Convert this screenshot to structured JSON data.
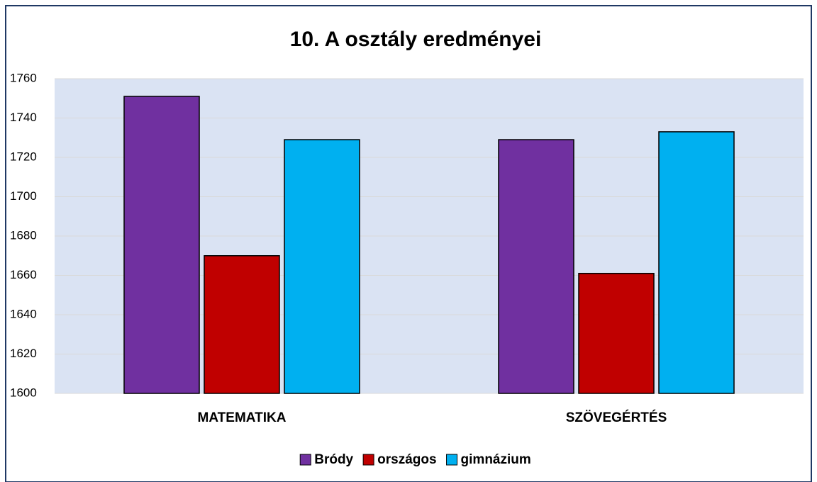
{
  "chart_data": {
    "type": "bar",
    "title": "10. A osztály eredményei",
    "categories": [
      "MATEMATIKA",
      "SZÖVEGÉRTÉS"
    ],
    "series": [
      {
        "name": "Bródy",
        "color": "#7030a0",
        "values": [
          1751,
          1729
        ]
      },
      {
        "name": "országos",
        "color": "#c00000",
        "values": [
          1670,
          1661
        ]
      },
      {
        "name": "gimnázium",
        "color": "#00b0f0",
        "values": [
          1729,
          1733
        ]
      }
    ],
    "ylim": [
      1600,
      1760
    ],
    "yticks": [
      1600,
      1620,
      1640,
      1660,
      1680,
      1700,
      1720,
      1740,
      1760
    ],
    "grid": true,
    "legend": "bottom",
    "plot_background": "#dae3f3"
  }
}
